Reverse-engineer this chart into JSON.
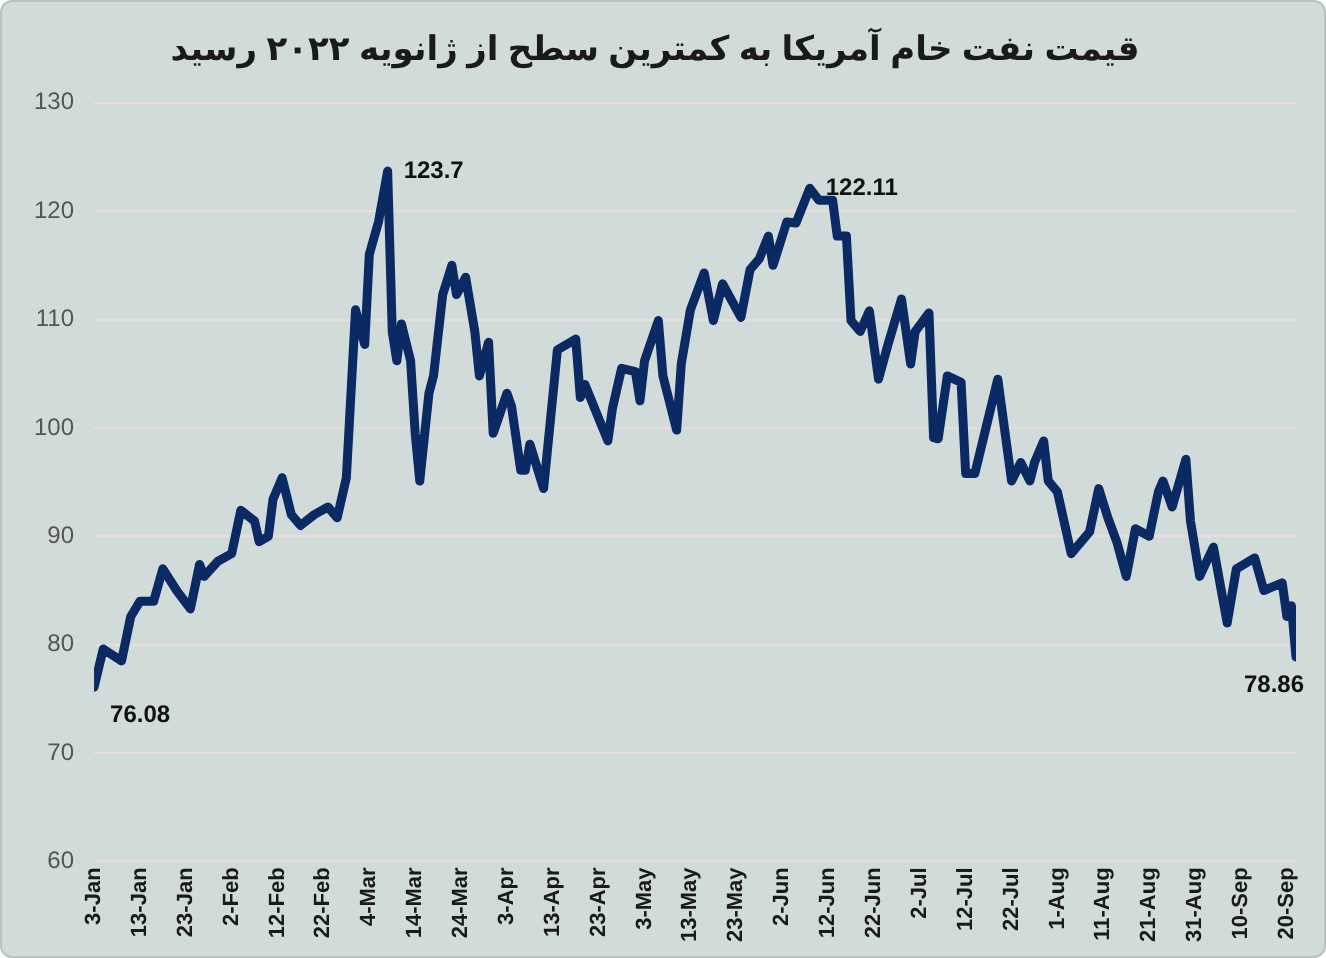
{
  "chart_data": {
    "type": "line",
    "title": "قیمت نفت خام آمریکا به کمترین سطح از ژانویه ۲۰۲۲ رسید",
    "x": [
      "--01-03",
      "--01-05",
      "--01-09",
      "--01-11",
      "--01-13",
      "--01-16",
      "--01-18",
      "--01-21",
      "--01-24",
      "--01-26",
      "--01-27",
      "--01-30",
      "--02-02",
      "--02-04",
      "--02-07",
      "--02-08",
      "--02-10",
      "--02-11",
      "--02-13",
      "--02-15",
      "--02-17",
      "--02-20",
      "--02-23",
      "--02-25",
      "--02-27",
      "--03-01",
      "--03-03",
      "--03-04",
      "--03-06",
      "--03-08",
      "--03-09",
      "--03-10",
      "--03-11",
      "--03-13",
      "--03-14",
      "--03-15",
      "--03-17",
      "--03-18",
      "--03-20",
      "--03-22",
      "--03-23",
      "--03-25",
      "--03-27",
      "--03-28",
      "--03-30",
      "--03-31",
      "--04-03",
      "--04-04",
      "--04-06",
      "--04-07",
      "--04-08",
      "--04-11",
      "--04-14",
      "--04-18",
      "--04-19",
      "--04-20",
      "--04-25",
      "--04-26",
      "--04-28",
      "--05-01",
      "--05-02",
      "--05-03",
      "--05-06",
      "--05-07",
      "--05-10",
      "--05-11",
      "--05-13",
      "--05-16",
      "--05-18",
      "--05-20",
      "--05-24",
      "--05-26",
      "--05-28",
      "--05-30",
      "--05-31",
      "--06-03",
      "--06-05",
      "--06-08",
      "--06-10",
      "--06-13",
      "--06-14",
      "--06-16",
      "--06-17",
      "--06-19",
      "--06-21",
      "--06-23",
      "--06-25",
      "--06-28",
      "--06-30",
      "--07-01",
      "--07-04",
      "--07-05",
      "--07-06",
      "--07-08",
      "--07-11",
      "--07-12",
      "--07-14",
      "--07-19",
      "--07-22",
      "--07-24",
      "--07-26",
      "--07-27",
      "--07-29",
      "--07-30",
      "--08-01",
      "--08-04",
      "--08-08",
      "--08-10",
      "--08-12",
      "--08-14",
      "--08-16",
      "--08-18",
      "--08-21",
      "--08-23",
      "--08-24",
      "--08-26",
      "--08-29",
      "--08-30",
      "--09-01",
      "--09-04",
      "--09-07",
      "--09-09",
      "--09-13",
      "--09-15",
      "--09-19",
      "--09-20",
      "--09-21",
      "--09-22"
    ],
    "series": [
      {
        "color": "#0b2a63",
        "values": [
          76.08,
          79.6,
          78.5,
          82.6,
          84,
          84,
          87,
          85,
          83.3,
          87.4,
          86.3,
          87.7,
          88.4,
          92.4,
          91.4,
          89.5,
          90,
          93.4,
          95.4,
          92,
          91,
          92,
          92.7,
          91.7,
          95.4,
          110.9,
          107.7,
          116,
          119,
          123.7,
          108.9,
          106.2,
          109.6,
          106.2,
          99.5,
          95.1,
          103.2,
          104.8,
          112.3,
          115,
          112.3,
          113.9,
          108.9,
          104.8,
          107.9,
          99.5,
          103.2,
          102,
          96.1,
          96.1,
          98.5,
          94.4,
          107.2,
          108.2,
          102.8,
          104,
          98.8,
          101.8,
          105.5,
          105.2,
          102.5,
          106.2,
          109.9,
          104.8,
          99.8,
          105.9,
          110.9,
          114.3,
          109.9,
          113.3,
          110.2,
          114.6,
          115.6,
          117.7,
          115,
          119,
          118.9,
          122.11,
          121,
          121,
          117.7,
          117.7,
          109.9,
          108.9,
          110.8,
          104.5,
          107.6,
          111.9,
          105.9,
          108.9,
          110.6,
          99.1,
          99,
          104.8,
          104.2,
          95.8,
          95.8,
          104.5,
          95.1,
          96.8,
          95.1,
          96.8,
          98.8,
          95.1,
          94.1,
          88.4,
          90.4,
          94.4,
          91.7,
          89.4,
          86.3,
          90.7,
          90,
          94.1,
          95.1,
          92.7,
          97.1,
          91.4,
          86.3,
          89,
          82,
          87,
          88,
          85,
          85.7,
          82.6,
          83.6,
          78.86
        ]
      }
    ],
    "xlim": [
      "--01-03",
      "--09-22"
    ],
    "xticks": [
      {
        "value": "--01-03",
        "label": "3-Jan"
      },
      {
        "value": "--01-13",
        "label": "13-Jan"
      },
      {
        "value": "--01-23",
        "label": "23-Jan"
      },
      {
        "value": "--02-02",
        "label": "2-Feb"
      },
      {
        "value": "--02-12",
        "label": "12-Feb"
      },
      {
        "value": "--02-22",
        "label": "22-Feb"
      },
      {
        "value": "--03-04",
        "label": "4-Mar"
      },
      {
        "value": "--03-14",
        "label": "14-Mar"
      },
      {
        "value": "--03-24",
        "label": "24-Mar"
      },
      {
        "value": "--04-03",
        "label": "3-Apr"
      },
      {
        "value": "--04-13",
        "label": "13-Apr"
      },
      {
        "value": "--04-23",
        "label": "23-Apr"
      },
      {
        "value": "--05-03",
        "label": "3-May"
      },
      {
        "value": "--05-13",
        "label": "13-May"
      },
      {
        "value": "--05-23",
        "label": "23-May"
      },
      {
        "value": "--06-02",
        "label": "2-Jun"
      },
      {
        "value": "--06-12",
        "label": "12-Jun"
      },
      {
        "value": "--06-22",
        "label": "22-Jun"
      },
      {
        "value": "--07-02",
        "label": "2-Jul"
      },
      {
        "value": "--07-12",
        "label": "12-Jul"
      },
      {
        "value": "--07-22",
        "label": "22-Jul"
      },
      {
        "value": "--08-01",
        "label": "1-Aug"
      },
      {
        "value": "--08-11",
        "label": "11-Aug"
      },
      {
        "value": "--08-21",
        "label": "21-Aug"
      },
      {
        "value": "--08-31",
        "label": "31-Aug"
      },
      {
        "value": "--09-10",
        "label": "10-Sep"
      },
      {
        "value": "--09-20",
        "label": "20-Sep"
      }
    ],
    "ylim": [
      60,
      130
    ],
    "yticks": [
      60,
      70,
      80,
      90,
      100,
      110,
      120,
      130
    ],
    "grid": "y",
    "marker": "none",
    "line_style": "solid",
    "annotations": [
      {
        "text": "76.08",
        "x": "--01-03",
        "y": 76.08
      },
      {
        "text": "123.7",
        "x": "--03-08",
        "y": 123.7
      },
      {
        "text": "122.11",
        "x": "--06-08",
        "y": 122.11
      },
      {
        "text": "78.86",
        "x": "--09-22",
        "y": 78.86
      }
    ]
  }
}
